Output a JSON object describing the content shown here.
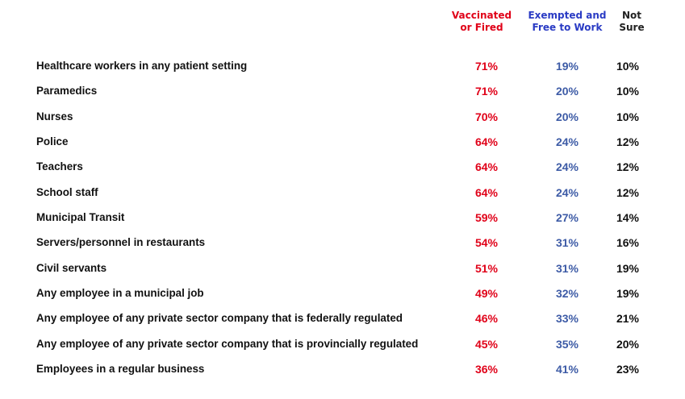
{
  "table": {
    "columns": [
      {
        "lines": [
          "Vaccinated",
          "or Fired"
        ]
      },
      {
        "lines": [
          "Exempted and",
          "Free to Work"
        ]
      },
      {
        "lines": [
          "Not",
          "Sure"
        ]
      }
    ],
    "rows": [
      [
        "Healthcare workers in any patient setting",
        "71%",
        "19%",
        "10%"
      ],
      [
        "Paramedics",
        "71%",
        "20%",
        "10%"
      ],
      [
        "Nurses",
        "70%",
        "20%",
        "10%"
      ],
      [
        "Police",
        "64%",
        "24%",
        "12%"
      ],
      [
        "Teachers",
        "64%",
        "24%",
        "12%"
      ],
      [
        "School staff",
        "64%",
        "24%",
        "12%"
      ],
      [
        "Municipal Transit",
        "59%",
        "27%",
        "14%"
      ],
      [
        "Servers/personnel in restaurants",
        "54%",
        "31%",
        "16%"
      ],
      [
        "Civil servants",
        "51%",
        "31%",
        "19%"
      ],
      [
        "Any employee in a municipal job",
        "49%",
        "32%",
        "19%"
      ],
      [
        "Any employee of any private sector company that is federally regulated",
        "46%",
        "33%",
        "21%"
      ],
      [
        "Any employee of any private sector company that is provincially regulated",
        "45%",
        "35%",
        "20%"
      ],
      [
        "Employees in a regular business",
        "36%",
        "41%",
        "23%"
      ]
    ]
  }
}
